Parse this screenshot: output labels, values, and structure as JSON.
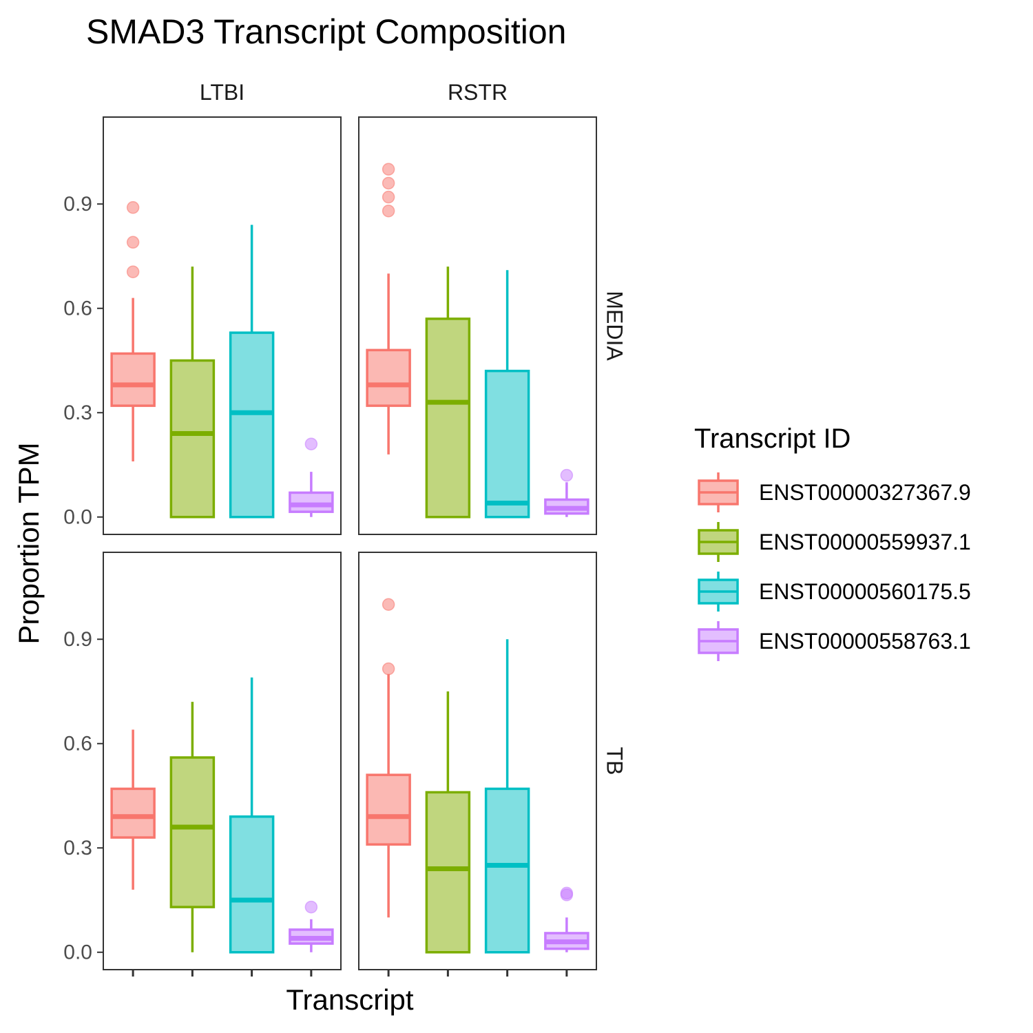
{
  "chart_data": {
    "type": "boxplot",
    "title": "SMAD3 Transcript Composition",
    "xlabel": "Transcript",
    "ylabel": "Proportion TPM",
    "y_ticks": [
      "0.0",
      "0.3",
      "0.6",
      "0.9"
    ],
    "y_tick_values": [
      0,
      0.3,
      0.6,
      0.9
    ],
    "ylim": [
      -0.05,
      1.15
    ],
    "facet_columns": [
      "LTBI",
      "RSTR"
    ],
    "facet_rows": [
      "MEDIA",
      "TB"
    ],
    "legend": {
      "title": "Transcript ID",
      "position": "right",
      "entries": [
        "ENST00000327367.9",
        "ENST00000559937.1",
        "ENST00000560175.5",
        "ENST00000558763.1"
      ]
    },
    "colors": {
      "ENST00000327367.9": {
        "line": "#F8766D",
        "fill": "#FBB8B3"
      },
      "ENST00000559937.1": {
        "line": "#7CAE00",
        "fill": "#C0D67E"
      },
      "ENST00000560175.5": {
        "line": "#00BFC4",
        "fill": "#80DFE1"
      },
      "ENST00000558763.1": {
        "line": "#C77CFF",
        "fill": "#E3BEFF"
      }
    },
    "panels": [
      {
        "row": "MEDIA",
        "col": "LTBI",
        "boxes": [
          {
            "transcript": "ENST00000327367.9",
            "lower_whisker": 0.16,
            "q1": 0.32,
            "median": 0.38,
            "q3": 0.47,
            "upper_whisker": 0.63,
            "outliers": [
              0.705,
              0.79,
              0.89
            ]
          },
          {
            "transcript": "ENST00000559937.1",
            "lower_whisker": 0.0,
            "q1": 0.0,
            "median": 0.24,
            "q3": 0.45,
            "upper_whisker": 0.72,
            "outliers": []
          },
          {
            "transcript": "ENST00000560175.5",
            "lower_whisker": 0.0,
            "q1": 0.0,
            "median": 0.3,
            "q3": 0.53,
            "upper_whisker": 0.84,
            "outliers": []
          },
          {
            "transcript": "ENST00000558763.1",
            "lower_whisker": 0.0,
            "q1": 0.015,
            "median": 0.035,
            "q3": 0.07,
            "upper_whisker": 0.13,
            "outliers": [
              0.21
            ]
          }
        ]
      },
      {
        "row": "MEDIA",
        "col": "RSTR",
        "boxes": [
          {
            "transcript": "ENST00000327367.9",
            "lower_whisker": 0.18,
            "q1": 0.32,
            "median": 0.38,
            "q3": 0.48,
            "upper_whisker": 0.7,
            "outliers": [
              0.88,
              0.92,
              0.96,
              1.0
            ]
          },
          {
            "transcript": "ENST00000559937.1",
            "lower_whisker": 0.0,
            "q1": 0.0,
            "median": 0.33,
            "q3": 0.57,
            "upper_whisker": 0.72,
            "outliers": []
          },
          {
            "transcript": "ENST00000560175.5",
            "lower_whisker": 0.0,
            "q1": 0.0,
            "median": 0.04,
            "q3": 0.42,
            "upper_whisker": 0.71,
            "outliers": []
          },
          {
            "transcript": "ENST00000558763.1",
            "lower_whisker": 0.0,
            "q1": 0.01,
            "median": 0.025,
            "q3": 0.05,
            "upper_whisker": 0.1,
            "outliers": [
              0.12
            ]
          }
        ]
      },
      {
        "row": "TB",
        "col": "LTBI",
        "boxes": [
          {
            "transcript": "ENST00000327367.9",
            "lower_whisker": 0.18,
            "q1": 0.33,
            "median": 0.39,
            "q3": 0.47,
            "upper_whisker": 0.64,
            "outliers": []
          },
          {
            "transcript": "ENST00000559937.1",
            "lower_whisker": 0.0,
            "q1": 0.13,
            "median": 0.36,
            "q3": 0.56,
            "upper_whisker": 0.72,
            "outliers": []
          },
          {
            "transcript": "ENST00000560175.5",
            "lower_whisker": 0.0,
            "q1": 0.0,
            "median": 0.15,
            "q3": 0.39,
            "upper_whisker": 0.79,
            "outliers": []
          },
          {
            "transcript": "ENST00000558763.1",
            "lower_whisker": 0.0,
            "q1": 0.025,
            "median": 0.04,
            "q3": 0.065,
            "upper_whisker": 0.095,
            "outliers": [
              0.13
            ]
          }
        ]
      },
      {
        "row": "TB",
        "col": "RSTR",
        "boxes": [
          {
            "transcript": "ENST00000327367.9",
            "lower_whisker": 0.1,
            "q1": 0.31,
            "median": 0.39,
            "q3": 0.51,
            "upper_whisker": 0.8,
            "outliers": [
              0.815,
              1.0
            ]
          },
          {
            "transcript": "ENST00000559937.1",
            "lower_whisker": 0.0,
            "q1": 0.0,
            "median": 0.24,
            "q3": 0.46,
            "upper_whisker": 0.75,
            "outliers": []
          },
          {
            "transcript": "ENST00000560175.5",
            "lower_whisker": 0.0,
            "q1": 0.0,
            "median": 0.25,
            "q3": 0.47,
            "upper_whisker": 0.9,
            "outliers": []
          },
          {
            "transcript": "ENST00000558763.1",
            "lower_whisker": 0.0,
            "q1": 0.01,
            "median": 0.03,
            "q3": 0.055,
            "upper_whisker": 0.1,
            "outliers": [
              0.165,
              0.17
            ]
          }
        ]
      }
    ]
  }
}
